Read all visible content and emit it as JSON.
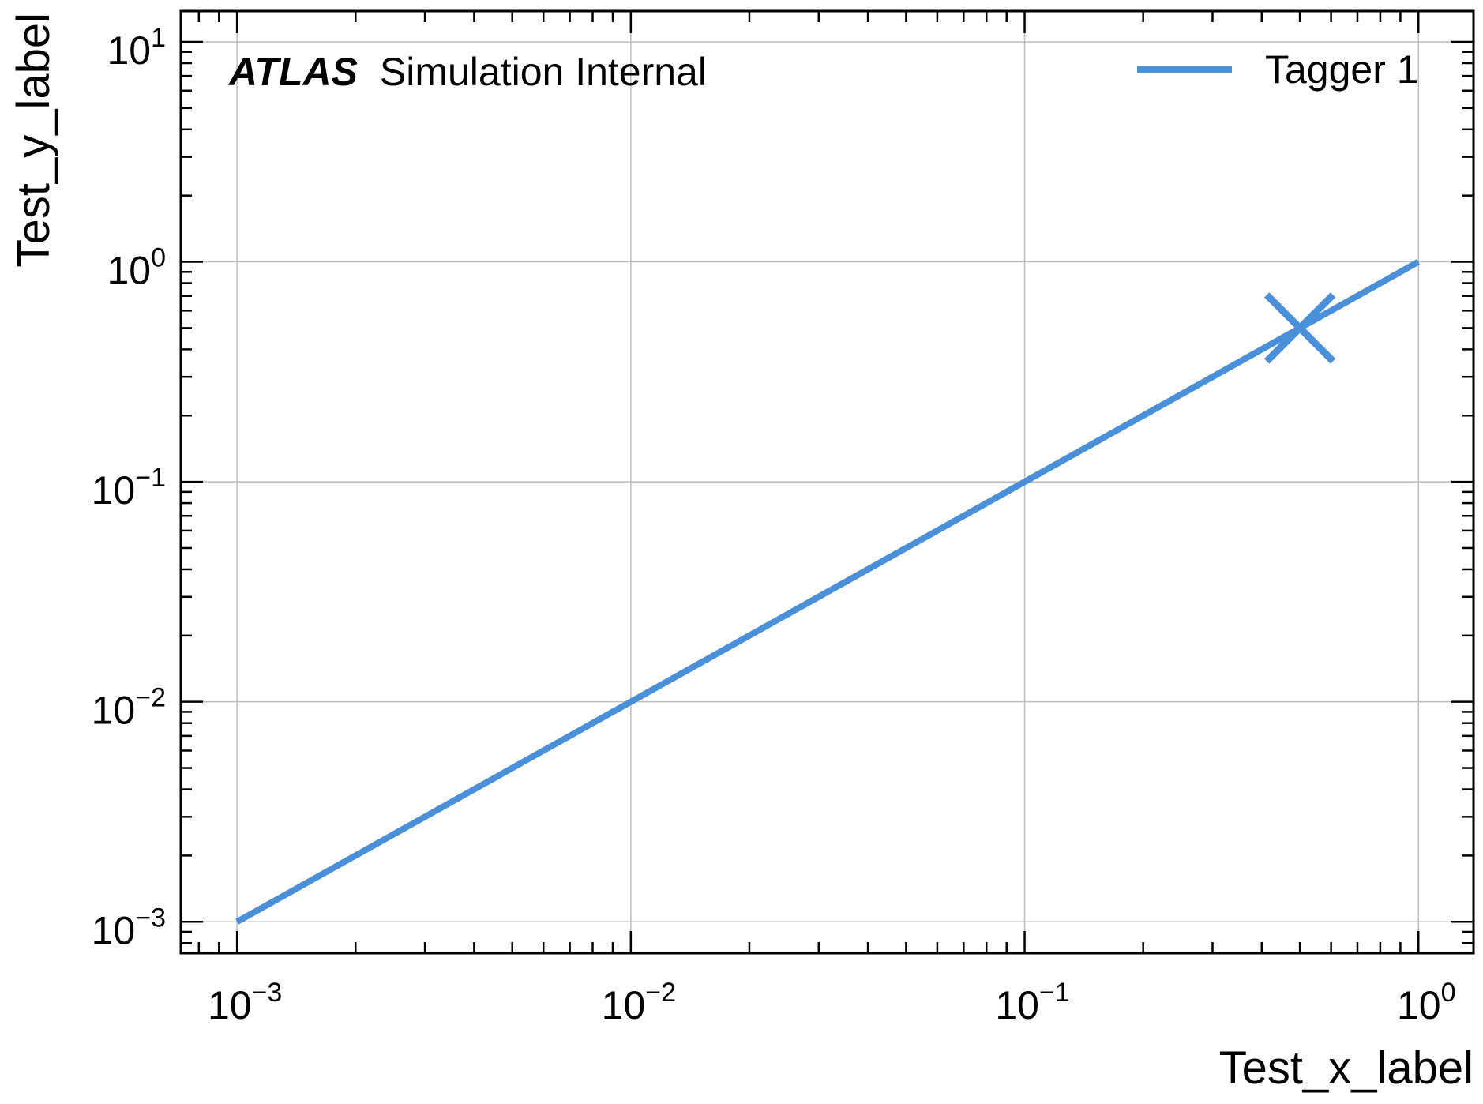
{
  "chart_data": {
    "type": "line",
    "title": "",
    "xlabel": "Test_x_label",
    "ylabel": "Test_y_label",
    "xscale": "log",
    "yscale": "log",
    "xlim": [
      0.00072,
      1.38
    ],
    "ylim": [
      0.00072,
      13.8
    ],
    "grid": true,
    "legend_position": "top-right",
    "x_ticks": [
      {
        "base": "10",
        "exp": "−3",
        "value": 0.001
      },
      {
        "base": "10",
        "exp": "−2",
        "value": 0.01
      },
      {
        "base": "10",
        "exp": "−1",
        "value": 0.1
      },
      {
        "base": "10",
        "exp": "0",
        "value": 1
      }
    ],
    "y_ticks": [
      {
        "base": "10",
        "exp": "−3",
        "value": 0.001
      },
      {
        "base": "10",
        "exp": "−2",
        "value": 0.01
      },
      {
        "base": "10",
        "exp": "−1",
        "value": 0.1
      },
      {
        "base": "10",
        "exp": "0",
        "value": 1
      },
      {
        "base": "10",
        "exp": "1",
        "value": 10
      }
    ],
    "series": [
      {
        "name": "Tagger 1",
        "color": "#4a90d9",
        "x": [
          0.001,
          1
        ],
        "y": [
          0.001,
          1
        ]
      }
    ],
    "markers": [
      {
        "x": 0.5,
        "y": 0.5,
        "shape": "x",
        "color": "#4a90d9"
      }
    ],
    "annotation": {
      "bold": "ATLAS",
      "text": "Simulation Internal"
    }
  }
}
